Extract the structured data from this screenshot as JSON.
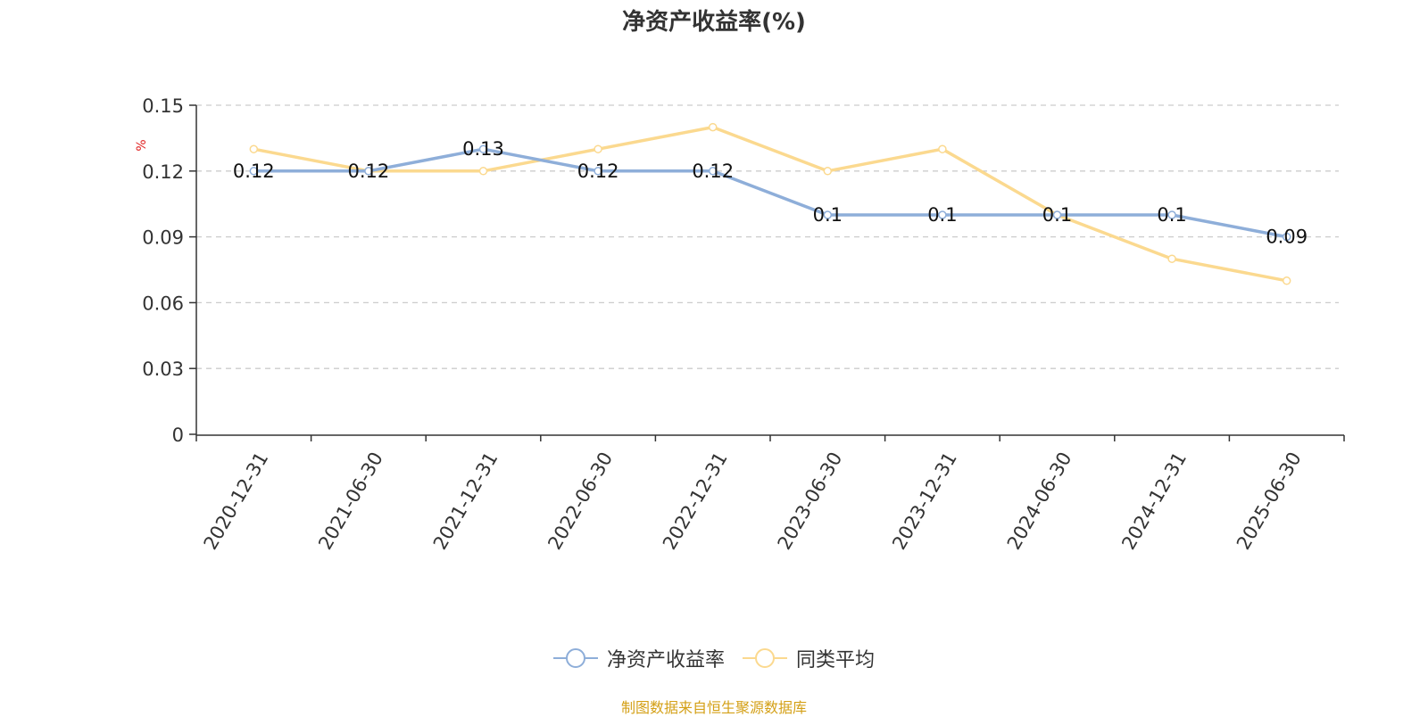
{
  "chart_data": {
    "type": "line",
    "title": "净资产收益率(%)",
    "ylabel": "%",
    "xlabel": "",
    "categories": [
      "2020-12-31",
      "2021-06-30",
      "2021-12-31",
      "2022-06-30",
      "2022-12-31",
      "2023-06-30",
      "2023-12-31",
      "2024-06-30",
      "2024-12-31",
      "2025-06-30"
    ],
    "ylim": [
      0,
      0.15
    ],
    "yticks": [
      "0",
      "0.03",
      "0.06",
      "0.09",
      "0.12",
      "0.15"
    ],
    "grid": true,
    "legend_position": "bottom",
    "series": [
      {
        "name": "净资产收益率",
        "color": "#8eaed9",
        "values": [
          0.12,
          0.12,
          0.13,
          0.12,
          0.12,
          0.1,
          0.1,
          0.1,
          0.1,
          0.09
        ],
        "labels": [
          "0.12",
          "0.12",
          "0.13",
          "0.12",
          "0.12",
          "0.1",
          "0.1",
          "0.1",
          "0.1",
          "0.09"
        ]
      },
      {
        "name": "同类平均",
        "color": "#fbd98f",
        "values": [
          0.13,
          0.12,
          0.12,
          0.13,
          0.14,
          0.12,
          0.13,
          0.1,
          0.08,
          0.07
        ]
      }
    ]
  },
  "footer": {
    "source": "制图数据来自恒生聚源数据库"
  },
  "colors": {
    "unit_label": "#e02020",
    "axis": "#333333",
    "grid": "#cccccc"
  }
}
